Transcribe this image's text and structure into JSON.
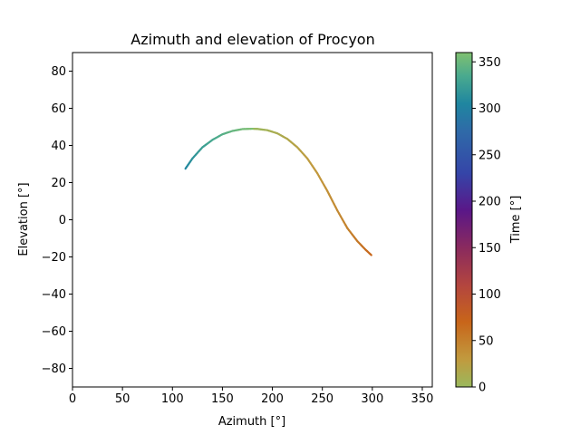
{
  "chart_data": {
    "type": "line",
    "title": "Azimuth and elevation of Procyon",
    "xlabel": "Azimuth [°]",
    "ylabel": "Elevation [°]",
    "xlim": [
      0,
      360
    ],
    "ylim": [
      -90,
      90
    ],
    "xticks": [
      "0",
      "50",
      "100",
      "150",
      "200",
      "250",
      "300",
      "350"
    ],
    "xtick_values": [
      0,
      50,
      100,
      150,
      200,
      250,
      300,
      350
    ],
    "yticks": [
      "−80",
      "−60",
      "−40",
      "−20",
      "0",
      "20",
      "40",
      "60",
      "80"
    ],
    "ytick_values": [
      -80,
      -60,
      -40,
      -20,
      0,
      20,
      40,
      60,
      80
    ],
    "grid": false,
    "series": [
      {
        "colored_by": "time",
        "points": [
          {
            "x": 113,
            "y": 27.5,
            "time": 305
          },
          {
            "x": 120,
            "y": 33.0,
            "time": 315
          },
          {
            "x": 130,
            "y": 39.0,
            "time": 325
          },
          {
            "x": 140,
            "y": 43.0,
            "time": 333
          },
          {
            "x": 150,
            "y": 46.0,
            "time": 340
          },
          {
            "x": 160,
            "y": 47.8,
            "time": 347
          },
          {
            "x": 170,
            "y": 48.8,
            "time": 353
          },
          {
            "x": 180,
            "y": 49.0,
            "time": 359
          },
          {
            "x": 185,
            "y": 48.9,
            "time": 2
          },
          {
            "x": 195,
            "y": 48.2,
            "time": 7
          },
          {
            "x": 205,
            "y": 46.5,
            "time": 12
          },
          {
            "x": 215,
            "y": 43.5,
            "time": 17
          },
          {
            "x": 225,
            "y": 39.0,
            "time": 22
          },
          {
            "x": 235,
            "y": 33.0,
            "time": 27
          },
          {
            "x": 245,
            "y": 25.0,
            "time": 32
          },
          {
            "x": 255,
            "y": 15.5,
            "time": 37
          },
          {
            "x": 265,
            "y": 5.0,
            "time": 42
          },
          {
            "x": 275,
            "y": -4.5,
            "time": 48
          },
          {
            "x": 285,
            "y": -11.5,
            "time": 55
          },
          {
            "x": 293,
            "y": -16.0,
            "time": 62
          },
          {
            "x": 299,
            "y": -19.0,
            "time": 70
          }
        ]
      }
    ],
    "colorbar": {
      "label": "Time [°]",
      "lim": [
        0,
        360
      ],
      "ticks": [
        "0",
        "50",
        "100",
        "150",
        "200",
        "250",
        "300",
        "350"
      ],
      "tick_values": [
        0,
        50,
        100,
        150,
        200,
        250,
        300,
        350
      ],
      "colormap_stops": [
        {
          "v": 0,
          "color": "#9ab85c"
        },
        {
          "v": 30,
          "color": "#c19a3e"
        },
        {
          "v": 70,
          "color": "#c8651a"
        },
        {
          "v": 110,
          "color": "#b3453f"
        },
        {
          "v": 150,
          "color": "#8a2a5e"
        },
        {
          "v": 190,
          "color": "#5a1788"
        },
        {
          "v": 230,
          "color": "#3545a8"
        },
        {
          "v": 275,
          "color": "#2f6aa8"
        },
        {
          "v": 305,
          "color": "#1f86a0"
        },
        {
          "v": 335,
          "color": "#4aaa8e"
        },
        {
          "v": 360,
          "color": "#80c070"
        }
      ]
    }
  }
}
